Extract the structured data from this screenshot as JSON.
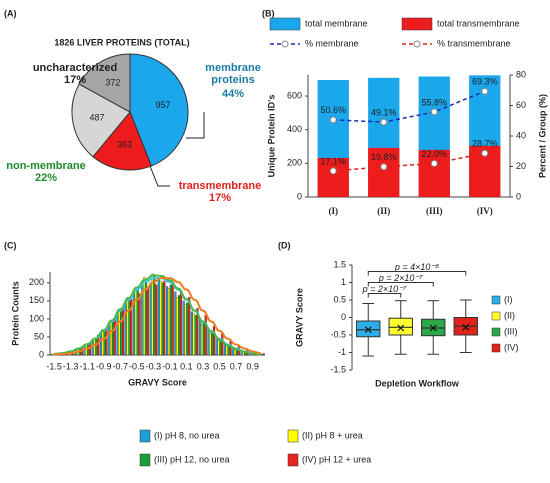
{
  "chart_data": [
    {
      "type": "pie",
      "panel": "(A)",
      "title": "1826 LIVER PROTEINS (TOTAL)",
      "categories": [
        "membrane proteins",
        "transmembrane",
        "non-membrane",
        "uncharacterized"
      ],
      "values": [
        44,
        17,
        22,
        17
      ],
      "value_labels": [
        "44%",
        "17%",
        "22%",
        "17%"
      ],
      "counts": [
        957,
        363,
        487,
        372
      ],
      "colors": [
        "#1aa7ec",
        "#ee1c1c",
        "#d6d6d6",
        "#a6a6a6"
      ],
      "label_colors": [
        "#1d7ca3",
        "#e0201a",
        "#1e8c2a",
        "#222222"
      ]
    },
    {
      "type": "bar",
      "panel": "(B)",
      "overlap": true,
      "legend": "top",
      "categories": [
        "(I)",
        "(II)",
        "(III)",
        "(IV)"
      ],
      "ylabel": "Unique Protein ID's",
      "y2label": "Percent / Group (%)",
      "ylim": [
        0,
        725
      ],
      "yticks": [
        0,
        200,
        400,
        600
      ],
      "y2lim": [
        0,
        80
      ],
      "y2ticks": [
        0,
        20,
        40,
        60,
        80
      ],
      "series": [
        {
          "name": "total membrane",
          "color": "#1aa7ec",
          "values": [
            695,
            708,
            716,
            723
          ]
        },
        {
          "name": "total transmembrane",
          "color": "#ee1c1c",
          "values": [
            232,
            292,
            280,
            304
          ]
        },
        {
          "name": "% membrane",
          "color": "#1c2bb5",
          "kind": "line",
          "axis": "y2",
          "dash": true,
          "values": [
            50.6,
            49.1,
            55.8,
            69.3
          ],
          "value_labels": [
            "50.6%",
            "49.1%",
            "55.8%",
            "69.3%"
          ]
        },
        {
          "name": "% transmembrane",
          "color": "#e0201a",
          "kind": "line",
          "axis": "y2",
          "dash": true,
          "values": [
            17.1,
            19.8,
            22.0,
            28.7
          ],
          "value_labels": [
            "17.1%",
            "19.8%",
            "22.0%",
            "28.7%"
          ]
        }
      ]
    },
    {
      "type": "bar",
      "panel": "(C)",
      "legend": "bottom",
      "xlabel": "GRAVY Score",
      "ylabel": "Protein Counts",
      "categories": [
        "-1.5",
        null,
        "-1.3",
        null,
        "-1.1",
        null,
        "-0.9",
        null,
        "-0.7",
        null,
        "-0.5",
        null,
        "-0.3",
        null,
        "-0.1",
        null,
        "0.1",
        null,
        "0.3",
        null,
        "0.5",
        null,
        "0.7",
        null,
        "0.9",
        null
      ],
      "ylim": [
        0,
        230
      ],
      "yticks": [
        0,
        50,
        100,
        150,
        200
      ],
      "series": [
        {
          "name": "(I) pH 8, no urea",
          "color": "#1e9fdc",
          "values": [
            2,
            4,
            8,
            15,
            25,
            42,
            60,
            85,
            115,
            148,
            178,
            195,
            200,
            210,
            190,
            175,
            150,
            120,
            100,
            70,
            50,
            30,
            20,
            10,
            6,
            3
          ]
        },
        {
          "name": "(II) pH 8 + urea",
          "color": "#ffff00",
          "values": [
            3,
            5,
            9,
            18,
            28,
            45,
            65,
            95,
            125,
            160,
            185,
            215,
            225,
            205,
            185,
            160,
            140,
            115,
            85,
            60,
            40,
            25,
            15,
            8,
            4,
            2
          ]
        },
        {
          "name": "(III) pH 12, no urea",
          "color": "#1a9e3a",
          "values": [
            2,
            4,
            10,
            17,
            30,
            45,
            68,
            92,
            128,
            150,
            180,
            205,
            220,
            200,
            195,
            165,
            145,
            110,
            90,
            60,
            45,
            28,
            18,
            9,
            5,
            2
          ]
        },
        {
          "name": "(IV) pH 12 + urea",
          "color": "#e8231c",
          "values": [
            4,
            6,
            12,
            22,
            35,
            55,
            75,
            100,
            130,
            155,
            170,
            185,
            195,
            205,
            200,
            180,
            160,
            130,
            110,
            80,
            60,
            40,
            25,
            15,
            8,
            4
          ]
        }
      ],
      "curves": [
        {
          "color": "#3cc8e8",
          "values": [
            3,
            5,
            10,
            18,
            29,
            45,
            67,
            93,
            123,
            153,
            181,
            202,
            213,
            213,
            202,
            181,
            153,
            123,
            93,
            67,
            45,
            29,
            18,
            10,
            5,
            3
          ]
        },
        {
          "color": "#4cb848",
          "values": [
            3,
            5,
            10,
            18,
            30,
            46,
            69,
            96,
            127,
            158,
            187,
            209,
            221,
            219,
            207,
            184,
            155,
            123,
            92,
            65,
            43,
            27,
            16,
            9,
            4,
            2
          ]
        },
        {
          "color": "#ef7d22",
          "values": [
            2,
            3,
            5,
            10,
            18,
            29,
            45,
            67,
            93,
            123,
            153,
            181,
            202,
            213,
            213,
            202,
            181,
            153,
            123,
            93,
            67,
            45,
            29,
            18,
            10,
            5
          ]
        }
      ]
    },
    {
      "type": "box",
      "panel": "(D)",
      "legend": "right",
      "xlabel": "Depletion Workflow",
      "ylabel": "GRAVY Score",
      "categories": [
        "(I)",
        "(II)",
        "(III)",
        "(IV)"
      ],
      "colors": [
        "#2eaee6",
        "#ffff33",
        "#2aa84a",
        "#e2231a"
      ],
      "ylim": [
        -1.5,
        1.5
      ],
      "yticks": [
        -1.5,
        -1,
        -0.5,
        0,
        0.5,
        1,
        1.5
      ],
      "whisker_low": [
        -1.1,
        -1.05,
        -1.05,
        -1.0
      ],
      "q1": [
        -0.55,
        -0.5,
        -0.52,
        -0.5
      ],
      "median": [
        -0.35,
        -0.28,
        -0.3,
        -0.25
      ],
      "q3": [
        -0.1,
        -0.02,
        -0.05,
        0.0
      ],
      "whisker_high": [
        0.4,
        0.48,
        0.48,
        0.5
      ],
      "mean": [
        -0.35,
        -0.3,
        -0.3,
        -0.28
      ],
      "annotations": [
        "p = 2×10⁻⁷",
        "p = 2×10⁻⁷",
        "p = 4×10⁻⁸"
      ]
    }
  ]
}
